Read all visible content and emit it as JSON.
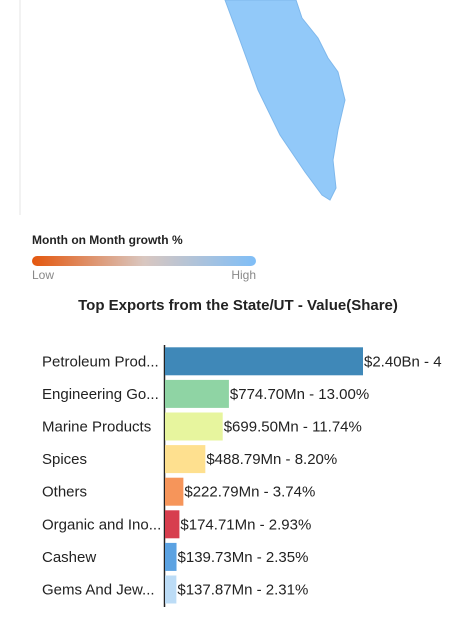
{
  "map_legend": {
    "title": "Month on Month growth %",
    "low": "Low",
    "high": "High"
  },
  "chart_data": {
    "type": "bar",
    "orientation": "horizontal",
    "title": "Top Exports from the State/UT - Value(Share)",
    "categories": [
      "Petroleum Prod...",
      "Engineering Go...",
      "Marine Products",
      "Spices",
      "Others",
      "Organic and Ino...",
      "Cashew",
      "Gems And Jew..."
    ],
    "values": [
      2400,
      774.7,
      699.5,
      488.79,
      222.79,
      174.71,
      139.73,
      137.87
    ],
    "value_labels": [
      "$2.40Bn - 4",
      "$774.70Mn - 13.00%",
      "$699.50Mn - 11.74%",
      "$488.79Mn - 8.20%",
      "$222.79Mn - 3.74%",
      "$174.71Mn - 2.93%",
      "$139.73Mn - 2.35%",
      "$137.87Mn - 2.31%"
    ],
    "colors": [
      "#3f88b8",
      "#8fd4a4",
      "#e7f59e",
      "#fee08f",
      "#f6955a",
      "#d73e4e",
      "#5ba2e2",
      "#bcdcf6"
    ]
  }
}
